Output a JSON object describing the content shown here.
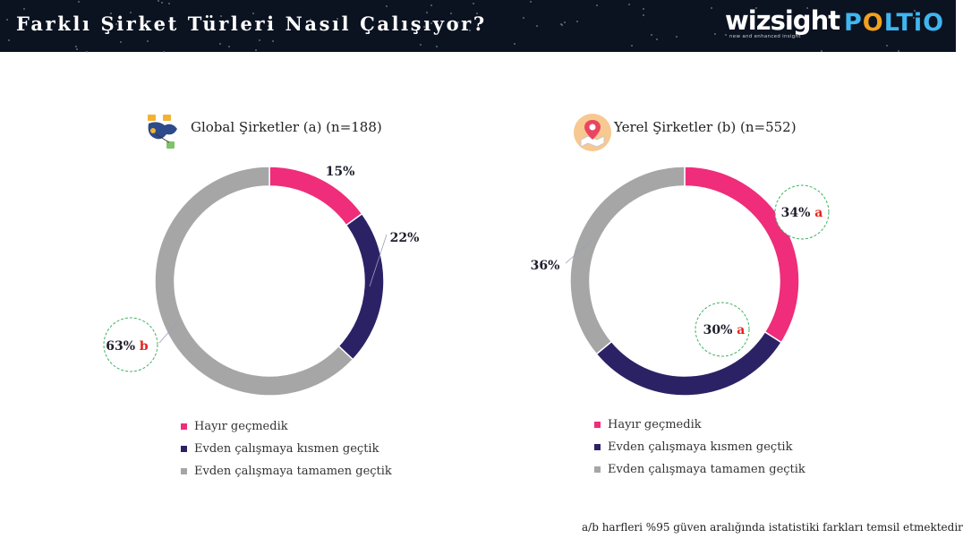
{
  "header": {
    "title": "Farklı Şirket Türleri Nasıl Çalışıyor?",
    "logo_wizsight": "wizsight",
    "logo_wizsight_tagline": "new and enhanced insight",
    "logo_poltio_part1": "P",
    "logo_poltio_o": "O",
    "logo_poltio_part2": "LTiO"
  },
  "legend": {
    "items": [
      "Hayır geçmedik",
      "Evden çalışmaya kısmen geçtik",
      "Evden çalışmaya tamamen geçtik"
    ]
  },
  "colors": {
    "pink": "#ef2d7b",
    "navy": "#2b2266",
    "gray": "#a6a6a6",
    "letter_red": "#e2231a",
    "circle_green": "#3fb35f"
  },
  "footnote": "a/b harfleri %95 güven aralığında istatistiki farkları temsil etmektedir",
  "chart_data": [
    {
      "type": "pie",
      "title": "Global Şirketler (a) (n=188)",
      "icon": "global-network-icon",
      "categories": [
        "Hayır geçmedik",
        "Evden çalışmaya kısmen geçtik",
        "Evden çalışmaya tamamen geçtik"
      ],
      "values": [
        15,
        22,
        63
      ],
      "labels": [
        "15%",
        "22%",
        "63%"
      ],
      "significance": [
        "",
        "",
        "b"
      ]
    },
    {
      "type": "pie",
      "title": "Yerel Şirketler (b) (n=552)",
      "icon": "map-pin-icon",
      "categories": [
        "Hayır geçmedik",
        "Evden çalışmaya kısmen geçtik",
        "Evden çalışmaya tamamen geçtik"
      ],
      "values": [
        34,
        30,
        36
      ],
      "labels": [
        "34%",
        "30%",
        "36%"
      ],
      "significance": [
        "a",
        "a",
        ""
      ]
    }
  ]
}
